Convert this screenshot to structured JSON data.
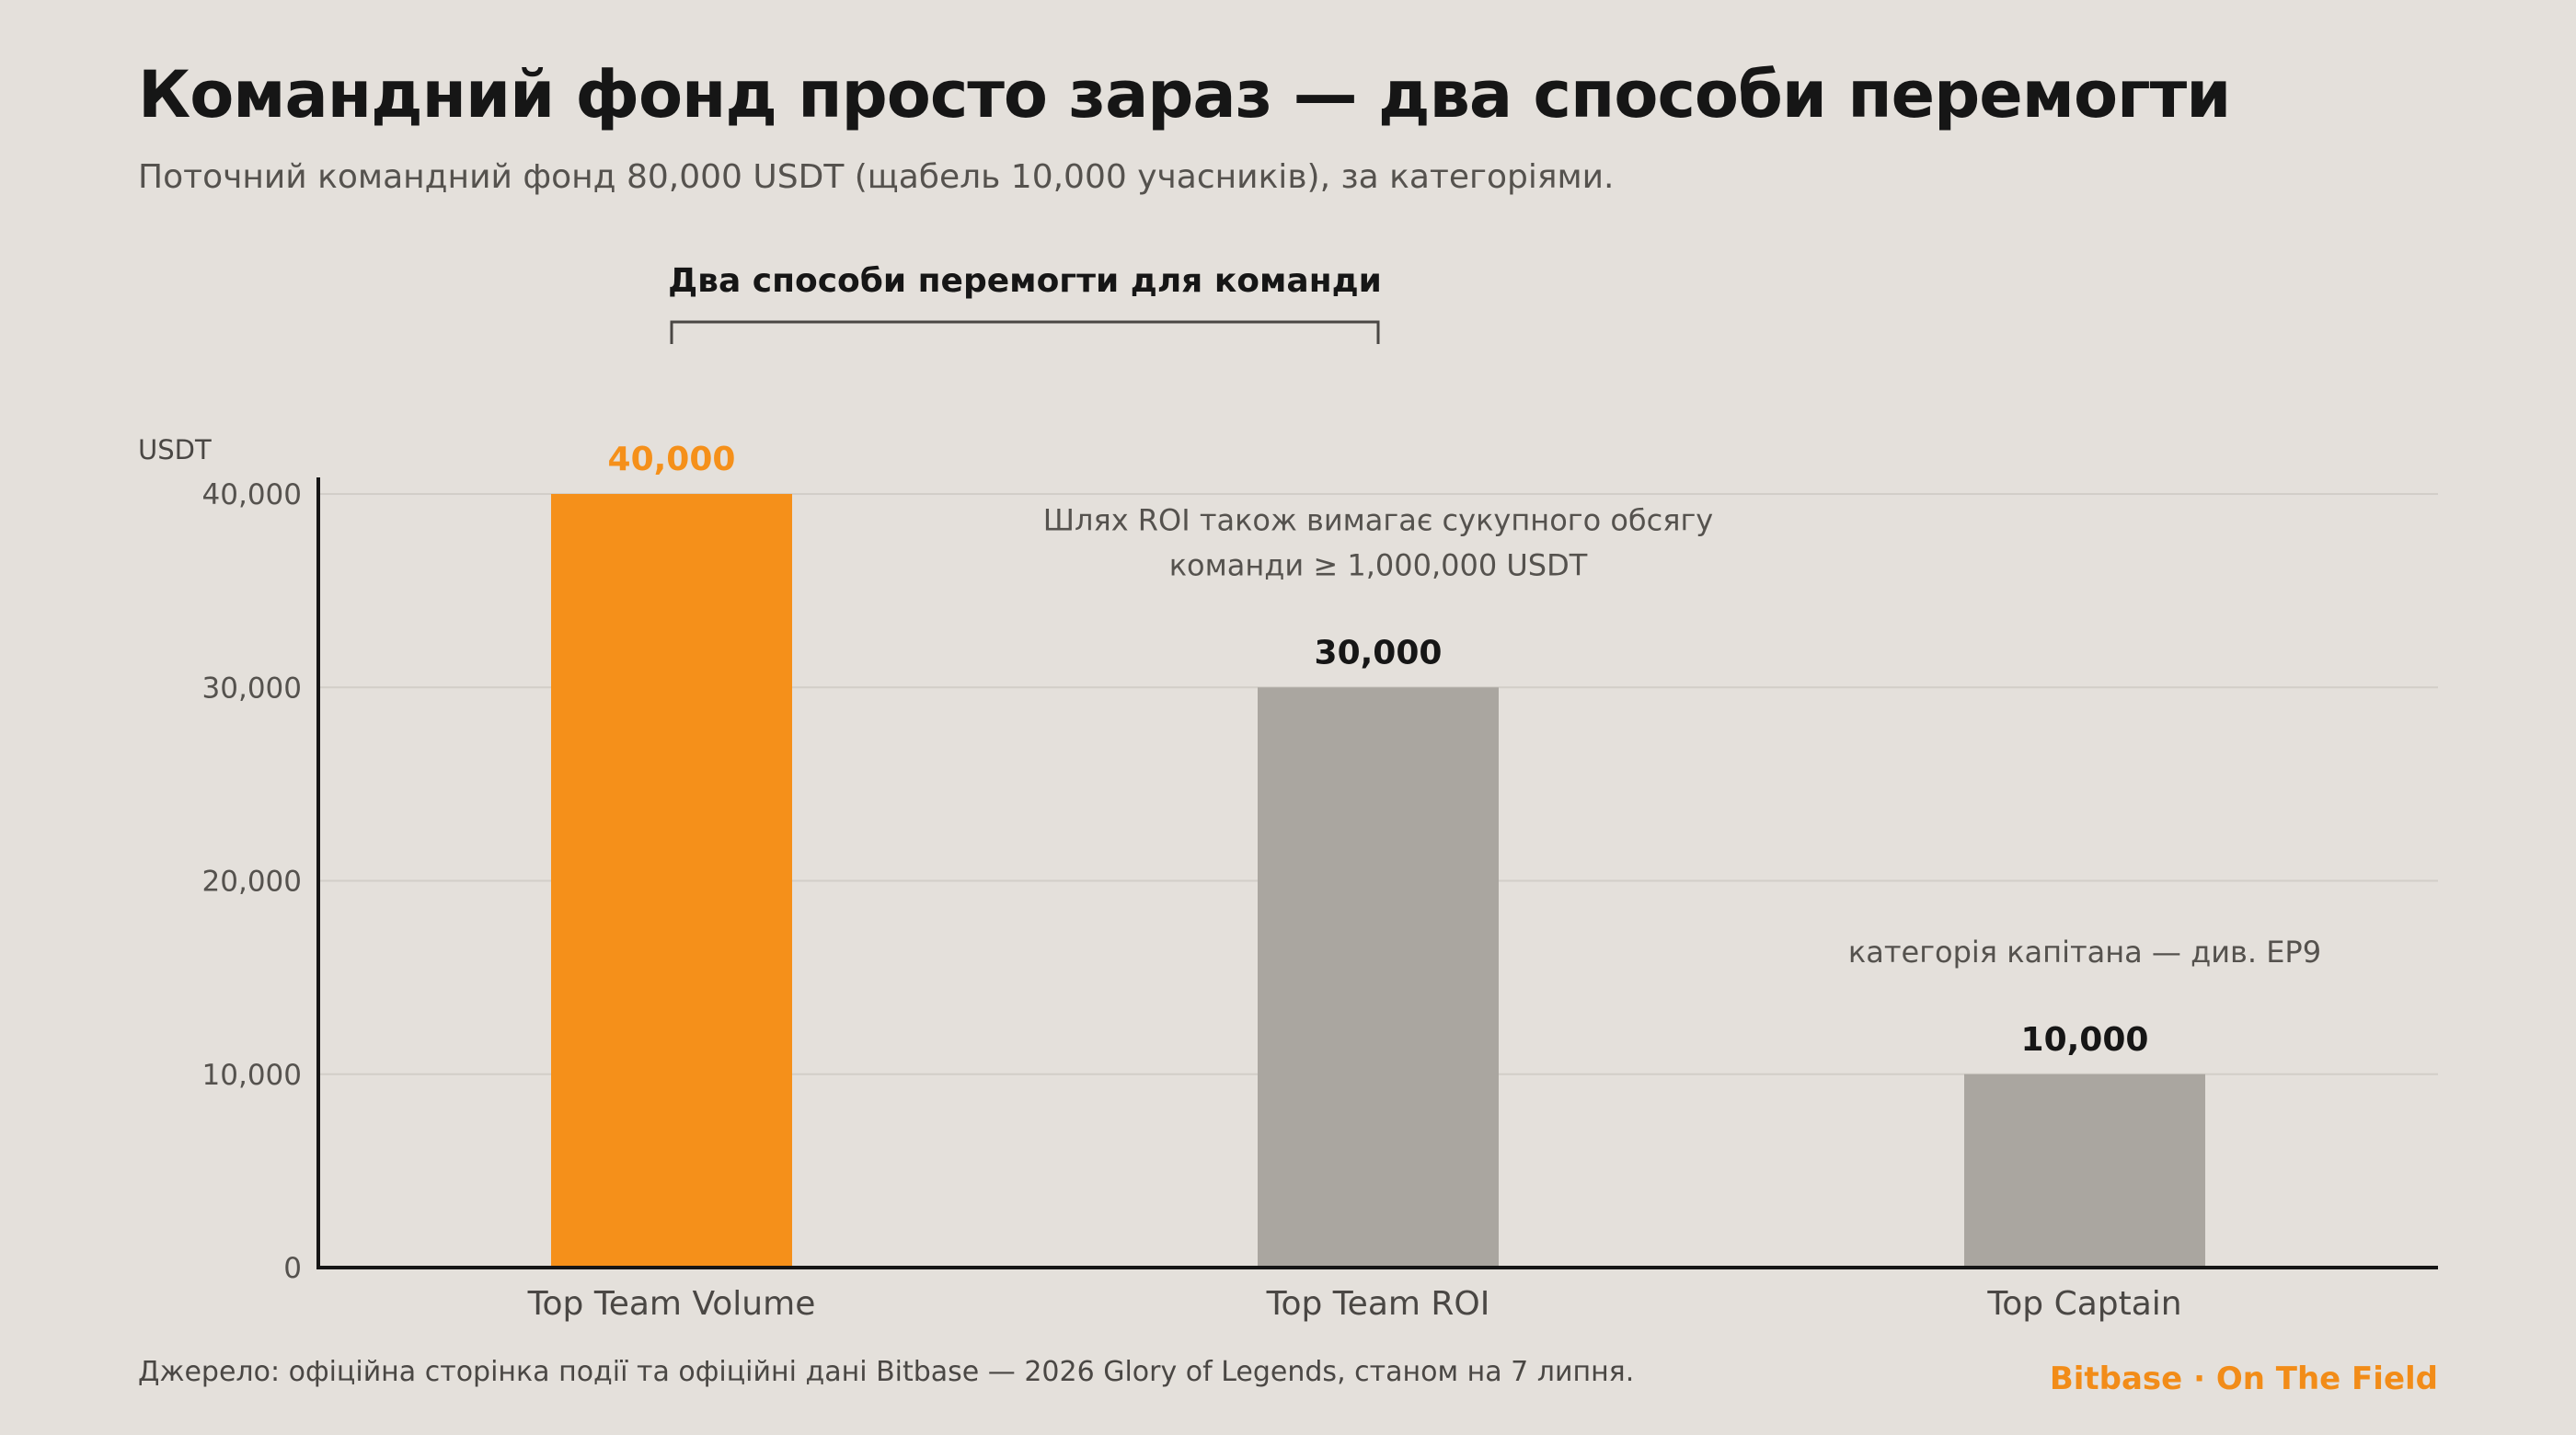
{
  "header": {
    "title": "Командний фонд просто зараз — два способи перемогти",
    "subtitle": "Поточний командний фонд 80,000 USDT (щабель 10,000 учасників), за категоріями."
  },
  "footer": {
    "source": "Джерело: офіційна сторінка події та офіційні дані Bitbase — 2026 Glory of Legends, станом на 7 липня.",
    "brand": "Bitbase · On The Field"
  },
  "colors": {
    "highlight": "#f5901a",
    "bar": "#aaa6a0",
    "axis": "#161616",
    "grid": "#d2cec8",
    "background": "#e4e0db"
  },
  "chart_data": {
    "type": "bar",
    "title": "",
    "xlabel": "",
    "ylabel": "USDT",
    "categories": [
      "Top Team Volume",
      "Top Team ROI",
      "Top Captain"
    ],
    "values": [
      40000,
      30000,
      10000
    ],
    "value_labels": [
      "40,000",
      "30,000",
      "10,000"
    ],
    "highlighted": [
      true,
      false,
      false
    ],
    "ylim": [
      0,
      40000
    ],
    "yticks": [
      0,
      10000,
      20000,
      30000,
      40000
    ],
    "ytick_labels": [
      "0",
      "10,000",
      "20,000",
      "30,000",
      "40,000"
    ],
    "grid": true,
    "legend": "none",
    "bracket": {
      "label": "Два способи перемогти для команди",
      "spans": [
        "Top Team Volume",
        "Top Team ROI"
      ]
    },
    "annotations": [
      {
        "category": "Top Team ROI",
        "lines": [
          "Шлях ROI також вимагає сукупного обсягу",
          "команди ≥ 1,000,000 USDT"
        ]
      },
      {
        "category": "Top Captain",
        "lines": [
          "категорія капітана — див. EP9"
        ]
      }
    ]
  }
}
